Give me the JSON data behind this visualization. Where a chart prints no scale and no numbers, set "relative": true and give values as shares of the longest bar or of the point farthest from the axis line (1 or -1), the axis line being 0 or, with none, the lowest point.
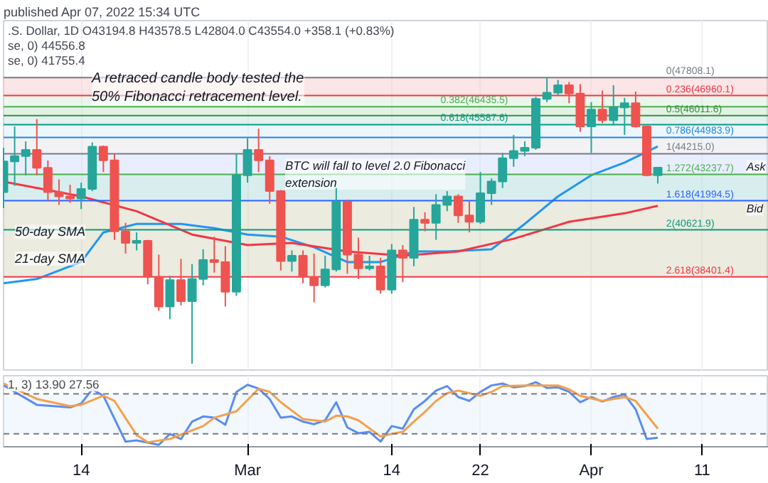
{
  "chart_data": [
    {
      "type": "candlestick",
      "title": ".S. Dollar, 1D",
      "subtitle": "O43194.8 H43578.5 L42804.0 C43554.0 +358.1 (+0.83%)",
      "x": [
        "2022-02-07",
        "2022-02-08",
        "2022-02-09",
        "2022-02-10",
        "2022-02-11",
        "2022-02-12",
        "2022-02-13",
        "2022-02-14",
        "2022-02-15",
        "2022-02-16",
        "2022-02-17",
        "2022-02-18",
        "2022-02-19",
        "2022-02-20",
        "2022-02-21",
        "2022-02-22",
        "2022-02-23",
        "2022-02-24",
        "2022-02-25",
        "2022-02-26",
        "2022-02-27",
        "2022-02-28",
        "2022-03-01",
        "2022-03-02",
        "2022-03-03",
        "2022-03-04",
        "2022-03-05",
        "2022-03-06",
        "2022-03-07",
        "2022-03-08",
        "2022-03-09",
        "2022-03-10",
        "2022-03-11",
        "2022-03-12",
        "2022-03-13",
        "2022-03-14",
        "2022-03-15",
        "2022-03-16",
        "2022-03-17",
        "2022-03-18",
        "2022-03-19",
        "2022-03-20",
        "2022-03-21",
        "2022-03-22",
        "2022-03-23",
        "2022-03-24",
        "2022-03-25",
        "2022-03-26",
        "2022-03-27",
        "2022-03-28",
        "2022-03-29",
        "2022-03-30",
        "2022-03-31",
        "2022-04-01",
        "2022-04-02",
        "2022-04-03",
        "2022-04-04",
        "2022-04-05",
        "2022-04-06",
        "2022-04-07"
      ],
      "ohlc": [
        [
          42400,
          44500,
          41650,
          43850
        ],
        [
          43850,
          45500,
          42700,
          44100
        ],
        [
          44100,
          44800,
          43200,
          44400
        ],
        [
          44400,
          45850,
          43200,
          43550
        ],
        [
          43550,
          43900,
          42000,
          42400
        ],
        [
          42400,
          43000,
          41800,
          42200
        ],
        [
          42200,
          42750,
          41900,
          42100
        ],
        [
          42100,
          42850,
          41600,
          42550
        ],
        [
          42550,
          44750,
          42450,
          44550
        ],
        [
          44550,
          44600,
          43350,
          43900
        ],
        [
          43900,
          44200,
          40150,
          40550
        ],
        [
          40550,
          40950,
          39500,
          40000
        ],
        [
          40000,
          40500,
          39650,
          40100
        ],
        [
          40100,
          40150,
          38050,
          38400
        ],
        [
          38400,
          39450,
          36800,
          37000
        ],
        [
          37000,
          38450,
          36400,
          38250
        ],
        [
          38250,
          39250,
          37050,
          37250
        ],
        [
          37250,
          39000,
          34300,
          38300
        ],
        [
          38300,
          39700,
          38000,
          39200
        ],
        [
          39200,
          40300,
          38600,
          39100
        ],
        [
          39100,
          39850,
          37000,
          37700
        ],
        [
          37700,
          44200,
          37500,
          43200
        ],
        [
          43200,
          44950,
          42850,
          44400
        ],
        [
          44400,
          45400,
          43350,
          43900
        ],
        [
          43900,
          44100,
          41850,
          42450
        ],
        [
          42450,
          42500,
          38700,
          39150
        ],
        [
          39150,
          39650,
          38650,
          39400
        ],
        [
          39400,
          39650,
          38100,
          38400
        ],
        [
          38400,
          39500,
          37200,
          38000
        ],
        [
          38000,
          39400,
          37900,
          38750
        ],
        [
          38750,
          42600,
          38650,
          41950
        ],
        [
          41950,
          42050,
          38550,
          39450
        ],
        [
          39450,
          40250,
          38300,
          38800
        ],
        [
          38800,
          39400,
          38700,
          38900
        ],
        [
          38900,
          39300,
          37600,
          37800
        ],
        [
          37800,
          39950,
          37600,
          39650
        ],
        [
          39650,
          39900,
          38150,
          39300
        ],
        [
          39300,
          41700,
          38900,
          41100
        ],
        [
          41100,
          41450,
          40550,
          40950
        ],
        [
          40950,
          42300,
          40150,
          41800
        ],
        [
          41800,
          42450,
          41500,
          42200
        ],
        [
          42200,
          42300,
          40950,
          41300
        ],
        [
          41300,
          42000,
          40500,
          41000
        ],
        [
          41000,
          43350,
          40900,
          42350
        ],
        [
          42350,
          43050,
          41800,
          42900
        ],
        [
          42900,
          44250,
          42600,
          44000
        ],
        [
          44000,
          45100,
          43600,
          44350
        ],
        [
          44350,
          44800,
          44100,
          44500
        ],
        [
          44500,
          46900,
          44400,
          46800
        ],
        [
          46800,
          47800,
          46650,
          47100
        ],
        [
          47100,
          47700,
          46950,
          47450
        ],
        [
          47450,
          47600,
          46600,
          47050
        ],
        [
          47050,
          47500,
          45250,
          45500
        ],
        [
          45500,
          46650,
          44250,
          46300
        ],
        [
          46300,
          47200,
          45650,
          45800
        ],
        [
          45800,
          47450,
          45550,
          46400
        ],
        [
          46400,
          46850,
          45100,
          46600
        ],
        [
          46600,
          47150,
          45450,
          45500
        ],
        [
          45500,
          45500,
          43150,
          43200
        ],
        [
          43194.8,
          43578.5,
          42804.0,
          43554.0
        ]
      ],
      "colors": [
        "#26a69a",
        "#26a69a",
        "#26a69a",
        "#ef5350",
        "#ef5350",
        "#ef5350",
        "#ef5350",
        "#26a69a",
        "#26a69a",
        "#ef5350",
        "#ef5350",
        "#ef5350",
        "#26a69a",
        "#ef5350",
        "#ef5350",
        "#26a69a",
        "#ef5350",
        "#26a69a",
        "#26a69a",
        "#ef5350",
        "#ef5350",
        "#26a69a",
        "#26a69a",
        "#ef5350",
        "#ef5350",
        "#ef5350",
        "#26a69a",
        "#ef5350",
        "#ef5350",
        "#26a69a",
        "#26a69a",
        "#ef5350",
        "#ef5350",
        "#26a69a",
        "#ef5350",
        "#26a69a",
        "#ef5350",
        "#26a69a",
        "#ef5350",
        "#26a69a",
        "#26a69a",
        "#ef5350",
        "#ef5350",
        "#26a69a",
        "#26a69a",
        "#26a69a",
        "#26a69a",
        "#26a69a",
        "#26a69a",
        "#26a69a",
        "#26a69a",
        "#ef5350",
        "#ef5350",
        "#26a69a",
        "#ef5350",
        "#26a69a",
        "#26a69a",
        "#ef5350",
        "#ef5350",
        "#26a69a"
      ],
      "series": [
        {
          "type": "line",
          "color": "#2196f3",
          "x": [
            "2022-02-07",
            "2022-02-10",
            "2022-02-14",
            "2022-02-16",
            "2022-02-19",
            "2022-02-23",
            "2022-02-26",
            "2022-03-01",
            "2022-03-04",
            "2022-03-07",
            "2022-03-10",
            "2022-03-13",
            "2022-03-16",
            "2022-03-19",
            "2022-03-23",
            "2022-03-26",
            "2022-03-29",
            "2022-04-01",
            "2022-04-04",
            "2022-04-07"
          ],
          "values": [
            38100,
            38300,
            39100,
            40500,
            40900,
            40900,
            40700,
            40400,
            40300,
            39800,
            39100,
            39100,
            39600,
            39600,
            39700,
            40900,
            42200,
            43200,
            43800,
            44556.8
          ]
        },
        {
          "type": "line",
          "color": "#f23645",
          "x": [
            "2022-02-07",
            "2022-02-14",
            "2022-02-19",
            "2022-02-24",
            "2022-03-01",
            "2022-03-05",
            "2022-03-10",
            "2022-03-15",
            "2022-03-20",
            "2022-03-25",
            "2022-03-30",
            "2022-04-04",
            "2022-04-07"
          ],
          "values": [
            42900,
            42200,
            41500,
            40400,
            39900,
            40000,
            39600,
            39400,
            39600,
            40200,
            41000,
            41400,
            41755.4
          ]
        }
      ],
      "ylim": [
        34000,
        50500
      ],
      "xlim": [
        "2022-02-07",
        "2022-04-17"
      ],
      "xticks": [
        {
          "value": "2022-02-14",
          "label": null
        },
        {
          "value": "2022-03-01",
          "label": null
        },
        {
          "value": "2022-03-14",
          "label": null
        },
        {
          "value": "2022-03-22",
          "label": null
        },
        {
          "value": "2022-04-01",
          "label": null
        },
        {
          "value": "2022-04-11",
          "label": null
        }
      ],
      "tick_labels": false,
      "grid": "x",
      "ref_lines": [
        {
          "axis": "y",
          "value": 47808.1,
          "label": "0(47808.1)",
          "color": "#787b86"
        },
        {
          "axis": "y",
          "value": 46960.1,
          "label": "0.236(46960.1)",
          "color": "#f23645"
        },
        {
          "axis": "y",
          "value": 46435.5,
          "label": "0.382(46435.5)",
          "color": "#4caf50"
        },
        {
          "axis": "y",
          "value": 46011.6,
          "label": "0.5(46011.6)",
          "color": "#388e3c"
        },
        {
          "axis": "y",
          "value": 45587.6,
          "label": "0.618(45587.6)",
          "color": "#089981"
        },
        {
          "axis": "y",
          "value": 44983.9,
          "label": "0.786(44983.9)",
          "color": "#1e88e5"
        },
        {
          "axis": "y",
          "value": 44215.0,
          "label": "1(44215.0)",
          "color": "#787b86"
        },
        {
          "axis": "y",
          "value": 43237.7,
          "label": "1.272(43237.7)",
          "color": "#4caf50"
        },
        {
          "axis": "y",
          "value": 41994.5,
          "label": "1.618(41994.5)",
          "color": "#2962ff"
        },
        {
          "axis": "y",
          "value": 40621.9,
          "label": "2(40621.9)",
          "color": "#089981"
        },
        {
          "axis": "y",
          "value": 38401.4,
          "label": "2.618(38401.4)",
          "color": "#f23645"
        }
      ],
      "bands": [
        {
          "axis": "y",
          "from": 46960.1,
          "to": 47808.1,
          "color": "#f8c6c8"
        },
        {
          "axis": "y",
          "from": 46435.5,
          "to": 46960.1,
          "color": "#d3ecd5"
        },
        {
          "axis": "y",
          "from": 46011.6,
          "to": 46435.5,
          "color": "#c2e3c5"
        },
        {
          "axis": "y",
          "from": 45587.6,
          "to": 46011.6,
          "color": "#bfe3dc"
        },
        {
          "axis": "y",
          "from": 44983.9,
          "to": 45587.6,
          "color": "#d6eafb"
        },
        {
          "axis": "y",
          "from": 44215.0,
          "to": 44983.9,
          "color": "#e2e3e6"
        },
        {
          "axis": "y",
          "from": 43237.7,
          "to": 44215.0,
          "color": "#cdd9fb"
        },
        {
          "axis": "y",
          "from": 41994.5,
          "to": 43237.7,
          "color": "#a9d6d6"
        },
        {
          "axis": "y",
          "from": 38401.4,
          "to": 41994.5,
          "color": "#d2d2b8"
        }
      ],
      "annotations": [
        "published Apr 07, 2022 15:34 UTC",
        "se, 0) 44556.8",
        "se, 0) 41755.4",
        "A retraced candle body tested the\n50% Fibonacci retracement level.",
        "BTC will fall to level 2.0 Fibonacci\nextension",
        "50-day SMA",
        "21-day SMA",
        {
          "text": "Ask",
          "x": "2022-04-15",
          "y": 43900
        },
        {
          "text": "Bid",
          "x": "2022-04-15",
          "y": 41900
        }
      ]
    },
    {
      "type": "line",
      "relative": true,
      "series": [
        {
          "color": "#5b8def",
          "x": [
            "2022-02-07",
            "2022-02-10",
            "2022-02-13",
            "2022-02-14",
            "2022-02-15",
            "2022-02-16",
            "2022-02-18",
            "2022-02-19",
            "2022-02-21",
            "2022-02-22",
            "2022-02-23",
            "2022-02-24",
            "2022-02-25",
            "2022-02-26",
            "2022-02-27",
            "2022-02-28",
            "2022-03-01",
            "2022-03-02",
            "2022-03-03",
            "2022-03-04",
            "2022-03-05",
            "2022-03-06",
            "2022-03-07",
            "2022-03-08",
            "2022-03-09",
            "2022-03-10",
            "2022-03-11",
            "2022-03-12",
            "2022-03-13",
            "2022-03-14",
            "2022-03-15",
            "2022-03-16",
            "2022-03-17",
            "2022-03-18",
            "2022-03-19",
            "2022-03-20",
            "2022-03-21",
            "2022-03-22",
            "2022-03-23",
            "2022-03-24",
            "2022-03-25",
            "2022-03-26",
            "2022-03-27",
            "2022-03-28",
            "2022-03-29",
            "2022-03-30",
            "2022-03-31",
            "2022-04-01",
            "2022-04-02",
            "2022-04-03",
            "2022-04-04",
            "2022-04-05",
            "2022-04-06",
            "2022-04-07"
          ],
          "values": [
            0.95,
            0.65,
            0.61,
            0.67,
            0.89,
            0.79,
            0.08,
            0.1,
            0.03,
            0.2,
            0.12,
            0.39,
            0.47,
            0.45,
            0.34,
            0.85,
            0.96,
            0.9,
            0.74,
            0.45,
            0.47,
            0.39,
            0.35,
            0.41,
            0.69,
            0.3,
            0.21,
            0.23,
            0.08,
            0.32,
            0.28,
            0.58,
            0.71,
            0.87,
            0.94,
            0.77,
            0.71,
            0.85,
            0.95,
            0.98,
            0.92,
            0.94,
            1,
            0.91,
            0.92,
            0.85,
            0.69,
            0.77,
            0.7,
            0.77,
            0.81,
            0.58,
            0.12,
            0.14
          ]
        },
        {
          "color": "#f5a04a",
          "x": [
            "2022-02-07",
            "2022-02-10",
            "2022-02-13",
            "2022-02-14",
            "2022-02-16",
            "2022-02-17",
            "2022-02-19",
            "2022-02-20",
            "2022-02-22",
            "2022-02-25",
            "2022-02-26",
            "2022-02-28",
            "2022-03-02",
            "2022-03-03",
            "2022-03-04",
            "2022-03-06",
            "2022-03-08",
            "2022-03-09",
            "2022-03-10",
            "2022-03-11",
            "2022-03-13",
            "2022-03-14",
            "2022-03-15",
            "2022-03-16",
            "2022-03-17",
            "2022-03-18",
            "2022-03-19",
            "2022-03-20",
            "2022-03-22",
            "2022-03-23",
            "2022-03-24",
            "2022-03-26",
            "2022-03-29",
            "2022-03-30",
            "2022-03-31",
            "2022-04-02",
            "2022-04-04",
            "2022-04-05",
            "2022-04-07"
          ],
          "values": [
            0.98,
            0.74,
            0.63,
            0.65,
            0.79,
            0.71,
            0.18,
            0.07,
            0.12,
            0.32,
            0.45,
            0.55,
            0.9,
            0.85,
            0.69,
            0.43,
            0.39,
            0.48,
            0.47,
            0.41,
            0.16,
            0.2,
            0.23,
            0.39,
            0.54,
            0.71,
            0.83,
            0.87,
            0.79,
            0.85,
            0.94,
            0.95,
            0.95,
            0.89,
            0.79,
            0.71,
            0.77,
            0.71,
            0.28
          ]
        }
      ],
      "xlim": [
        "2022-02-07",
        "2022-04-17"
      ],
      "xticks": [
        {
          "value": "2022-02-14",
          "label": "14"
        },
        {
          "value": "2022-03-01",
          "label": "Mar"
        },
        {
          "value": "2022-03-14",
          "label": "14"
        },
        {
          "value": "2022-03-22",
          "label": "22"
        },
        {
          "value": "2022-04-01",
          "label": "Apr"
        },
        {
          "value": "2022-04-11",
          "label": "11"
        }
      ],
      "tick_labels": "x",
      "grid": "x",
      "ref_lines": [
        {
          "axis": "y",
          "value": 0.82,
          "line_style": "dashed",
          "color": "#787b86"
        },
        {
          "axis": "y",
          "value": 0.2,
          "line_style": "dashed",
          "color": "#787b86"
        }
      ],
      "bands": [
        {
          "axis": "y",
          "from": 0.2,
          "to": 0.82,
          "color": "#e3f0fc"
        }
      ],
      "annotations": [
        "1, 3) 13.90 27.56"
      ]
    }
  ]
}
